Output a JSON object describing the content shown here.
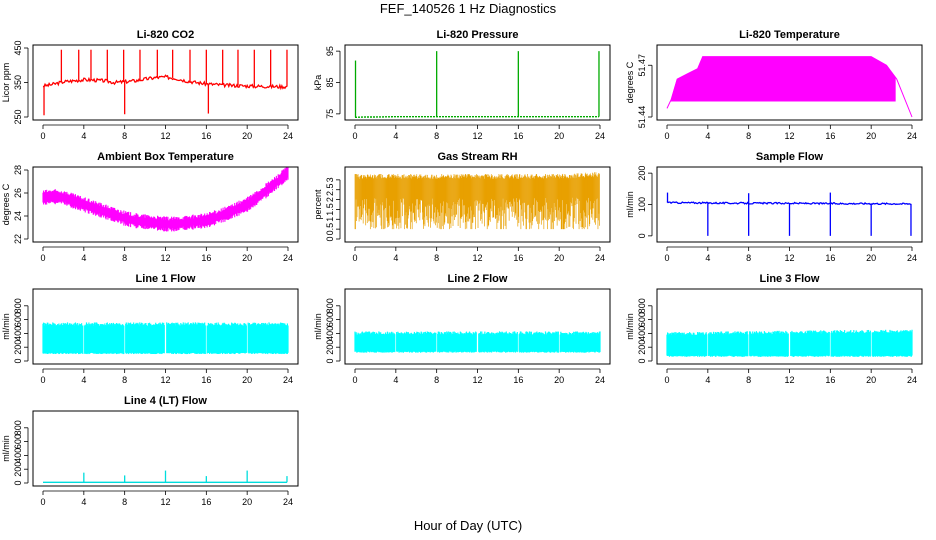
{
  "figure": {
    "title": "FEF_140526  1 Hz Diagnostics",
    "xlabel": "Hour of Day (UTC)"
  },
  "chart_data": [
    {
      "id": "co2",
      "type": "line",
      "title": "Li-820 CO2",
      "ylabel": "Licor ppm",
      "color": "#ff0000",
      "xlim": [
        0,
        24
      ],
      "ylim": [
        250,
        450
      ],
      "xticks": [
        0,
        4,
        8,
        12,
        16,
        20,
        24
      ],
      "yticks": [
        250,
        350,
        450
      ],
      "x": [
        0,
        0.5,
        1,
        2,
        3,
        4,
        5,
        6,
        7,
        8,
        9,
        10,
        11,
        12,
        13,
        14,
        15,
        16,
        17,
        18,
        19,
        20,
        21,
        22,
        23,
        24
      ],
      "y": [
        340,
        342,
        345,
        352,
        355,
        358,
        357,
        355,
        350,
        352,
        355,
        360,
        364,
        366,
        362,
        355,
        350,
        346,
        344,
        342,
        341,
        340,
        339,
        339,
        338,
        338
      ],
      "spikes": [
        {
          "x": 1.8,
          "y": 445
        },
        {
          "x": 3.5,
          "y": 445
        },
        {
          "x": 4.7,
          "y": 445
        },
        {
          "x": 6.3,
          "y": 445
        },
        {
          "x": 7.9,
          "y": 445
        },
        {
          "x": 9.5,
          "y": 445
        },
        {
          "x": 11.2,
          "y": 445
        },
        {
          "x": 12.7,
          "y": 445
        },
        {
          "x": 14.4,
          "y": 445
        },
        {
          "x": 16.0,
          "y": 445
        },
        {
          "x": 17.6,
          "y": 445
        },
        {
          "x": 19.1,
          "y": 445
        },
        {
          "x": 20.7,
          "y": 445
        },
        {
          "x": 22.3,
          "y": 445
        },
        {
          "x": 23.9,
          "y": 445
        }
      ],
      "dips": [
        {
          "x": 0.1,
          "y": 255
        },
        {
          "x": 8.0,
          "y": 258
        },
        {
          "x": 16.2,
          "y": 260
        }
      ]
    },
    {
      "id": "pressure",
      "type": "line",
      "title": "Li-820 Pressure",
      "ylabel": "kPa",
      "color": "#00aa00",
      "xlim": [
        0,
        24
      ],
      "ylim": [
        74,
        96
      ],
      "xticks": [
        0,
        4,
        8,
        12,
        16,
        20,
        24
      ],
      "yticks": [
        75,
        85,
        95
      ],
      "x": [
        0,
        1,
        2,
        4,
        6,
        8,
        10,
        12,
        14,
        16,
        18,
        20,
        22,
        24
      ],
      "y": [
        73.9,
        74.0,
        74.0,
        74.1,
        74.1,
        74.1,
        74.1,
        74.1,
        74.1,
        74.1,
        74.1,
        74.1,
        74.1,
        74.1
      ],
      "spikes": [
        {
          "x": 0.05,
          "y": 92
        },
        {
          "x": 8.0,
          "y": 95
        },
        {
          "x": 16.0,
          "y": 95
        },
        {
          "x": 23.9,
          "y": 95
        }
      ]
    },
    {
      "id": "licor_temp",
      "type": "line",
      "title": "Li-820 Temperature",
      "ylabel": "degrees C",
      "color": "#ff00ff",
      "xlim": [
        0,
        24
      ],
      "ylim": [
        51.44,
        51.48
      ],
      "xticks": [
        0,
        4,
        8,
        12,
        16,
        20,
        24
      ],
      "yticks": [
        51.44,
        51.47
      ],
      "x": [
        0,
        0.4,
        1,
        2,
        3,
        3.5,
        5,
        10,
        15,
        20,
        21.5,
        22.5,
        24
      ],
      "y": [
        51.445,
        51.45,
        51.462,
        51.465,
        51.468,
        51.475,
        51.475,
        51.475,
        51.475,
        51.475,
        51.47,
        51.462,
        51.44
      ]
    },
    {
      "id": "box_temp",
      "type": "line",
      "title": "Ambient Box Temperature",
      "ylabel": "degrees C",
      "color": "#ff00ff",
      "xlim": [
        0,
        24
      ],
      "ylim": [
        22,
        28
      ],
      "xticks": [
        0,
        4,
        8,
        12,
        16,
        20,
        24
      ],
      "yticks": [
        22,
        24,
        26,
        28
      ],
      "x": [
        0,
        1,
        2,
        3,
        4,
        5,
        6,
        7,
        8,
        9,
        10,
        11,
        12,
        13,
        14,
        15,
        16,
        17,
        18,
        19,
        20,
        21,
        22,
        23,
        24
      ],
      "y": [
        25.6,
        25.7,
        25.6,
        25.3,
        25.0,
        24.7,
        24.4,
        24.1,
        23.8,
        23.6,
        23.5,
        23.4,
        23.3,
        23.3,
        23.4,
        23.5,
        23.6,
        23.9,
        24.2,
        24.6,
        25.0,
        25.6,
        26.3,
        27.0,
        27.8
      ],
      "band": 0.6
    },
    {
      "id": "rh",
      "type": "line",
      "title": "Gas Stream RH",
      "ylabel": "percent",
      "color": "#e8a000",
      "xlim": [
        0,
        24
      ],
      "ylim": [
        0,
        3.5
      ],
      "xticks": [
        0,
        4,
        8,
        12,
        16,
        20,
        24
      ],
      "yticks": [
        0,
        0.5,
        1.0,
        1.5,
        2.0,
        2.5,
        3.0
      ],
      "x": [
        0,
        4,
        8,
        12,
        16,
        20,
        24
      ],
      "y": [
        3.3,
        3.3,
        3.3,
        3.3,
        3.3,
        3.3,
        3.4
      ],
      "low": 0.5
    },
    {
      "id": "sample_flow",
      "type": "line",
      "title": "Sample Flow",
      "ylabel": "ml/min",
      "color": "#0000ff",
      "xlim": [
        0,
        24
      ],
      "ylim": [
        -10,
        210
      ],
      "xticks": [
        0,
        4,
        8,
        12,
        16,
        20,
        24
      ],
      "yticks": [
        0,
        100,
        200
      ],
      "x": [
        0,
        0.5,
        4,
        8,
        12,
        16,
        20,
        24
      ],
      "y": [
        108,
        106,
        105,
        104,
        104,
        103,
        103,
        102
      ],
      "dips": [
        {
          "x": 4,
          "y": 0
        },
        {
          "x": 8,
          "y": 0
        },
        {
          "x": 12,
          "y": 0
        },
        {
          "x": 16,
          "y": 0
        },
        {
          "x": 20,
          "y": 0
        },
        {
          "x": 23.9,
          "y": 0
        }
      ],
      "spikes": [
        {
          "x": 0.05,
          "y": 138
        },
        {
          "x": 8.0,
          "y": 136
        },
        {
          "x": 16.0,
          "y": 138
        }
      ]
    },
    {
      "id": "line1",
      "type": "area",
      "title": "Line 1 Flow",
      "ylabel": "ml/min",
      "color": "#00ffff",
      "xlim": [
        0,
        24
      ],
      "ylim": [
        0,
        1000
      ],
      "xticks": [
        0,
        4,
        8,
        12,
        16,
        20,
        24
      ],
      "yticks": [
        0,
        200,
        400,
        600,
        800
      ],
      "x": [
        0,
        24
      ],
      "upper": [
        560,
        560
      ],
      "lower": [
        100,
        100
      ],
      "gaps": [
        4,
        8,
        12,
        16,
        20
      ]
    },
    {
      "id": "line2",
      "type": "area",
      "title": "Line 2 Flow",
      "ylabel": "ml/min",
      "color": "#00ffff",
      "xlim": [
        0,
        24
      ],
      "ylim": [
        0,
        1000
      ],
      "xticks": [
        0,
        4,
        8,
        12,
        16,
        20,
        24
      ],
      "yticks": [
        0,
        200,
        400,
        600,
        800
      ],
      "x": [
        0,
        24
      ],
      "upper": [
        430,
        430
      ],
      "lower": [
        120,
        120
      ],
      "gaps": [
        4,
        8,
        12,
        16,
        20
      ]
    },
    {
      "id": "line3",
      "type": "area",
      "title": "Line 3 Flow",
      "ylabel": "ml/min",
      "color": "#00ffff",
      "xlim": [
        0,
        24
      ],
      "ylim": [
        0,
        1000
      ],
      "xticks": [
        0,
        4,
        8,
        12,
        16,
        20,
        24
      ],
      "yticks": [
        0,
        200,
        400,
        600,
        800
      ],
      "x": [
        0,
        24
      ],
      "upper": [
        420,
        460
      ],
      "lower": [
        60,
        60
      ],
      "gaps": [
        4,
        8,
        12,
        16,
        20
      ]
    },
    {
      "id": "line4",
      "type": "line",
      "title": "Line 4 (LT) Flow",
      "ylabel": "ml/min",
      "color": "#00dddd",
      "xlim": [
        0,
        24
      ],
      "ylim": [
        0,
        1000
      ],
      "xticks": [
        0,
        4,
        8,
        12,
        16,
        20,
        24
      ],
      "yticks": [
        0,
        200,
        400,
        600,
        800
      ],
      "x": [
        0,
        24
      ],
      "y": [
        10,
        10
      ],
      "spikes": [
        {
          "x": 4,
          "y": 150
        },
        {
          "x": 8,
          "y": 110
        },
        {
          "x": 12,
          "y": 180
        },
        {
          "x": 16,
          "y": 100
        },
        {
          "x": 20,
          "y": 180
        },
        {
          "x": 23.9,
          "y": 100
        }
      ]
    }
  ]
}
